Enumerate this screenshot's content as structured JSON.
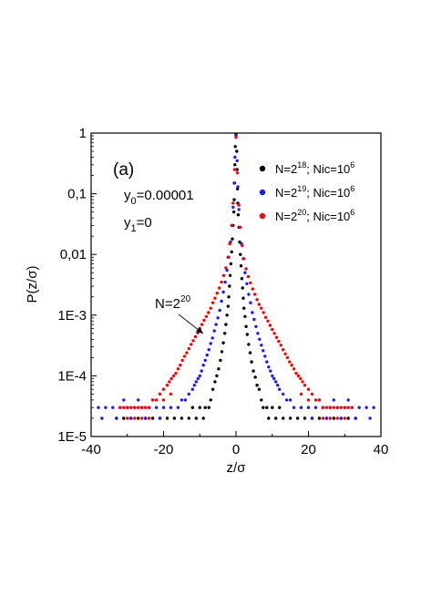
{
  "chart_data": {
    "type": "scatter",
    "title": "",
    "xlabel": "z/σ",
    "ylabel": "P(z/σ)",
    "xlim": [
      -40,
      40
    ],
    "ylim": [
      1e-05,
      1
    ],
    "yscale": "log",
    "grid": false,
    "legend_position": "top-right",
    "xticks": [
      -40,
      -20,
      0,
      20,
      40
    ],
    "xtick_labels": [
      "-40",
      "-20",
      "0",
      "20",
      "40"
    ],
    "yticks": [
      1e-05,
      0.0001,
      0.001,
      0.01,
      0.1,
      1
    ],
    "ytick_labels": [
      "1E-5",
      "1E-4",
      "1E-3",
      "0,01",
      "0,1",
      "1"
    ],
    "panel_label": "(a)",
    "params": [
      {
        "var": "y",
        "sub": "0",
        "rest": "=0.00001"
      },
      {
        "var": "y",
        "sub": "1",
        "rest": "=0"
      }
    ],
    "annotation": {
      "text": "N=2",
      "sup": "20",
      "x": -9,
      "y": 0.00045
    },
    "legend": [
      {
        "base": "N=2",
        "exp": "18",
        "mid": "; Nic=10",
        "exp2": "6",
        "color": "#000000"
      },
      {
        "base": "N=2",
        "exp": "19",
        "mid": "; Nic=10",
        "exp2": "6",
        "color": "#1a1aff"
      },
      {
        "base": "N=2",
        "exp": "20",
        "mid": "; Nic=10",
        "exp2": "6",
        "color": "#ff0000"
      }
    ],
    "series": [
      {
        "color": "#000000",
        "points": [
          [
            0,
            0.95
          ],
          [
            -0.2,
            0.6
          ],
          [
            0.2,
            0.5
          ],
          [
            -0.3,
            0.3
          ],
          [
            0.3,
            0.25
          ],
          [
            -0.4,
            0.15
          ],
          [
            0.4,
            0.12
          ],
          [
            -0.5,
            0.08
          ],
          [
            0.5,
            0.07
          ],
          [
            -0.6,
            0.05
          ],
          [
            0.6,
            0.045
          ],
          [
            -0.8,
            0.03
          ],
          [
            0.8,
            0.028
          ],
          [
            -1,
            0.018
          ],
          [
            1,
            0.016
          ],
          [
            -1.2,
            0.011
          ],
          [
            1.2,
            0.01
          ],
          [
            -1.4,
            0.007
          ],
          [
            1.4,
            0.0065
          ],
          [
            -1.6,
            0.0045
          ],
          [
            1.6,
            0.004
          ],
          [
            -1.8,
            0.003
          ],
          [
            1.8,
            0.0028
          ],
          [
            -2,
            0.002
          ],
          [
            2,
            0.0019
          ],
          [
            -2.2,
            0.0014
          ],
          [
            2.2,
            0.0013
          ],
          [
            -2.5,
            0.001
          ],
          [
            2.5,
            0.00095
          ],
          [
            -2.8,
            0.0007
          ],
          [
            2.8,
            0.00065
          ],
          [
            -3.1,
            0.0005
          ],
          [
            3.1,
            0.00048
          ],
          [
            -3.5,
            0.00035
          ],
          [
            3.5,
            0.00033
          ],
          [
            -3.9,
            0.00025
          ],
          [
            3.9,
            0.00024
          ],
          [
            -4.3,
            0.00018
          ],
          [
            4.3,
            0.00017
          ],
          [
            -4.8,
            0.00013
          ],
          [
            4.8,
            0.00012
          ],
          [
            -5.3,
            0.0001
          ],
          [
            5.3,
            9.5e-05
          ],
          [
            -5.8,
            8e-05
          ],
          [
            5.8,
            7e-05
          ],
          [
            -6.4,
            6e-05
          ],
          [
            6.4,
            6e-05
          ],
          [
            -7,
            4e-05
          ],
          [
            7,
            4e-05
          ],
          [
            -7.5,
            3e-05
          ],
          [
            7.5,
            3e-05
          ],
          [
            -8.5,
            3e-05
          ],
          [
            8.5,
            3e-05
          ],
          [
            -10,
            3e-05
          ],
          [
            10,
            3e-05
          ],
          [
            -12,
            3e-05
          ],
          [
            12,
            3e-05
          ],
          [
            -9,
            2e-05
          ],
          [
            -11,
            2e-05
          ],
          [
            -13,
            2e-05
          ],
          [
            -15,
            2e-05
          ],
          [
            -17,
            2e-05
          ],
          [
            -19,
            2e-05
          ],
          [
            -21,
            2e-05
          ],
          [
            -23,
            2e-05
          ],
          [
            -25,
            2e-05
          ],
          [
            -27,
            2e-05
          ],
          [
            -29,
            2e-05
          ],
          [
            -31,
            2e-05
          ],
          [
            -33,
            2e-05
          ],
          [
            9,
            2e-05
          ],
          [
            11,
            2e-05
          ],
          [
            13,
            2e-05
          ],
          [
            15,
            2e-05
          ],
          [
            17,
            2e-05
          ],
          [
            19,
            2e-05
          ],
          [
            21,
            2e-05
          ],
          [
            23,
            2e-05
          ],
          [
            25,
            2e-05
          ],
          [
            27,
            2e-05
          ],
          [
            29,
            2e-05
          ],
          [
            31,
            2e-05
          ],
          [
            33,
            2e-05
          ]
        ]
      },
      {
        "color": "#1a1aff",
        "points": [
          [
            0,
            0.9
          ],
          [
            -0.3,
            0.4
          ],
          [
            0.3,
            0.35
          ],
          [
            -0.5,
            0.15
          ],
          [
            0.5,
            0.13
          ],
          [
            -0.8,
            0.06
          ],
          [
            0.8,
            0.055
          ],
          [
            -1.1,
            0.03
          ],
          [
            1.1,
            0.028
          ],
          [
            -1.5,
            0.016
          ],
          [
            1.5,
            0.015
          ],
          [
            -2,
            0.009
          ],
          [
            2,
            0.0085
          ],
          [
            -2.5,
            0.0055
          ],
          [
            2.5,
            0.005
          ],
          [
            -3,
            0.0035
          ],
          [
            3,
            0.0033
          ],
          [
            -3.5,
            0.0024
          ],
          [
            3.5,
            0.0022
          ],
          [
            -4,
            0.0017
          ],
          [
            4,
            0.0016
          ],
          [
            -4.5,
            0.0012
          ],
          [
            4.5,
            0.0011
          ],
          [
            -5,
            0.0009
          ],
          [
            5,
            0.00085
          ],
          [
            -5.5,
            0.0007
          ],
          [
            5.5,
            0.00065
          ],
          [
            -6,
            0.00055
          ],
          [
            6,
            0.0005
          ],
          [
            -6.5,
            0.00042
          ],
          [
            6.5,
            0.0004
          ],
          [
            -7,
            0.00034
          ],
          [
            7,
            0.00032
          ],
          [
            -7.5,
            0.00027
          ],
          [
            7.5,
            0.00026
          ],
          [
            -8,
            0.00022
          ],
          [
            8,
            0.00021
          ],
          [
            -8.5,
            0.00018
          ],
          [
            8.5,
            0.00017
          ],
          [
            -9,
            0.00015
          ],
          [
            9,
            0.00014
          ],
          [
            -9.5,
            0.00012
          ],
          [
            9.5,
            0.00012
          ],
          [
            -10,
            0.0001
          ],
          [
            10,
            0.0001
          ],
          [
            -10.5,
            9e-05
          ],
          [
            10.5,
            9e-05
          ],
          [
            -11,
            8e-05
          ],
          [
            11,
            8e-05
          ],
          [
            -11.5,
            7e-05
          ],
          [
            11.5,
            7e-05
          ],
          [
            -12,
            6e-05
          ],
          [
            12,
            6e-05
          ],
          [
            -13,
            5e-05
          ],
          [
            13,
            5e-05
          ],
          [
            -14,
            4e-05
          ],
          [
            14,
            4e-05
          ],
          [
            -15,
            4e-05
          ],
          [
            15,
            4e-05
          ],
          [
            -16,
            3e-05
          ],
          [
            16,
            3e-05
          ],
          [
            -18,
            3e-05
          ],
          [
            18,
            3e-05
          ],
          [
            -20,
            3e-05
          ],
          [
            20,
            3e-05
          ],
          [
            -22,
            3e-05
          ],
          [
            22,
            3e-05
          ],
          [
            -24,
            3e-05
          ],
          [
            24,
            3e-05
          ],
          [
            -26,
            3e-05
          ],
          [
            26,
            3e-05
          ],
          [
            -28,
            3e-05
          ],
          [
            28,
            3e-05
          ],
          [
            -30,
            3e-05
          ],
          [
            30,
            3e-05
          ],
          [
            -32,
            3e-05
          ],
          [
            32,
            3e-05
          ],
          [
            -34,
            3e-05
          ],
          [
            34,
            3e-05
          ],
          [
            -36,
            3e-05
          ],
          [
            36,
            3e-05
          ],
          [
            -38,
            3e-05
          ],
          [
            38,
            3e-05
          ],
          [
            -21,
            2e-05
          ],
          [
            -25,
            2e-05
          ],
          [
            -29,
            2e-05
          ],
          [
            -33,
            2e-05
          ],
          [
            -37,
            2e-05
          ],
          [
            21,
            2e-05
          ],
          [
            25,
            2e-05
          ],
          [
            29,
            2e-05
          ],
          [
            33,
            2e-05
          ],
          [
            37,
            2e-05
          ],
          [
            -23,
            4e-05
          ],
          [
            -27,
            4e-05
          ],
          [
            -31,
            4e-05
          ],
          [
            23,
            4e-05
          ],
          [
            27,
            4e-05
          ],
          [
            31,
            4e-05
          ]
        ]
      },
      {
        "color": "#ff0000",
        "points": [
          [
            0,
            0.85
          ],
          [
            -0.4,
            0.25
          ],
          [
            0.4,
            0.22
          ],
          [
            -0.8,
            0.07
          ],
          [
            0.8,
            0.065
          ],
          [
            -1.2,
            0.03
          ],
          [
            1.2,
            0.028
          ],
          [
            -1.7,
            0.015
          ],
          [
            1.7,
            0.014
          ],
          [
            -2.2,
            0.009
          ],
          [
            2.2,
            0.0085
          ],
          [
            -2.8,
            0.006
          ],
          [
            2.8,
            0.0058
          ],
          [
            -3.4,
            0.0045
          ],
          [
            3.4,
            0.0043
          ],
          [
            -4,
            0.0035
          ],
          [
            4,
            0.0034
          ],
          [
            -4.6,
            0.0028
          ],
          [
            4.6,
            0.0027
          ],
          [
            -5.2,
            0.0023
          ],
          [
            5.2,
            0.0022
          ],
          [
            -5.8,
            0.0019
          ],
          [
            5.8,
            0.0018
          ],
          [
            -6.4,
            0.0016
          ],
          [
            6.4,
            0.0015
          ],
          [
            -7,
            0.0013
          ],
          [
            7,
            0.0013
          ],
          [
            -7.6,
            0.0011
          ],
          [
            7.6,
            0.0011
          ],
          [
            -8.2,
            0.00095
          ],
          [
            8.2,
            0.00092
          ],
          [
            -8.8,
            0.00082
          ],
          [
            8.8,
            0.0008
          ],
          [
            -9.4,
            0.0007
          ],
          [
            9.4,
            0.00068
          ],
          [
            -10,
            0.0006
          ],
          [
            10,
            0.00058
          ],
          [
            -10.6,
            0.00051
          ],
          [
            10.6,
            0.0005
          ],
          [
            -11.2,
            0.00044
          ],
          [
            11.2,
            0.00043
          ],
          [
            -11.8,
            0.00038
          ],
          [
            11.8,
            0.00037
          ],
          [
            -12.4,
            0.00033
          ],
          [
            12.4,
            0.00032
          ],
          [
            -13,
            0.00028
          ],
          [
            13,
            0.00027
          ],
          [
            -13.6,
            0.00024
          ],
          [
            13.6,
            0.00023
          ],
          [
            -14.2,
            0.00021
          ],
          [
            14.2,
            0.0002
          ],
          [
            -14.8,
            0.00018
          ],
          [
            14.8,
            0.00017
          ],
          [
            -15.4,
            0.00015
          ],
          [
            15.4,
            0.00015
          ],
          [
            -16,
            0.00013
          ],
          [
            16,
            0.00013
          ],
          [
            -16.6,
            0.00011
          ],
          [
            16.6,
            0.00011
          ],
          [
            -17.2,
            0.0001
          ],
          [
            17.2,
            0.0001
          ],
          [
            -17.8,
            9e-05
          ],
          [
            17.8,
            9e-05
          ],
          [
            -18.4,
            8e-05
          ],
          [
            18.4,
            8e-05
          ],
          [
            -19,
            7e-05
          ],
          [
            19,
            7e-05
          ],
          [
            -20,
            6e-05
          ],
          [
            20,
            6e-05
          ],
          [
            -21,
            5e-05
          ],
          [
            21,
            5e-05
          ],
          [
            -22,
            4e-05
          ],
          [
            22,
            4e-05
          ],
          [
            -23,
            4e-05
          ],
          [
            23,
            4e-05
          ],
          [
            -24,
            3e-05
          ],
          [
            24,
            3e-05
          ],
          [
            -25,
            3e-05
          ],
          [
            25,
            3e-05
          ],
          [
            -26,
            3e-05
          ],
          [
            26,
            3e-05
          ],
          [
            -27,
            3e-05
          ],
          [
            27,
            3e-05
          ],
          [
            -28,
            3e-05
          ],
          [
            28,
            3e-05
          ],
          [
            -29,
            3e-05
          ],
          [
            29,
            3e-05
          ],
          [
            -30,
            3e-05
          ],
          [
            30,
            3e-05
          ],
          [
            -31,
            3e-05
          ],
          [
            31,
            3e-05
          ],
          [
            -32,
            3e-05
          ],
          [
            32,
            3e-05
          ],
          [
            -24,
            2e-05
          ],
          [
            -26,
            2e-05
          ],
          [
            -28,
            2e-05
          ],
          [
            -30,
            2e-05
          ],
          [
            24,
            2e-05
          ],
          [
            26,
            2e-05
          ],
          [
            28,
            2e-05
          ],
          [
            30,
            2e-05
          ],
          [
            -20,
            4e-05
          ],
          [
            20,
            4e-05
          ],
          [
            -18,
            5e-05
          ],
          [
            18,
            5e-05
          ]
        ]
      }
    ]
  }
}
